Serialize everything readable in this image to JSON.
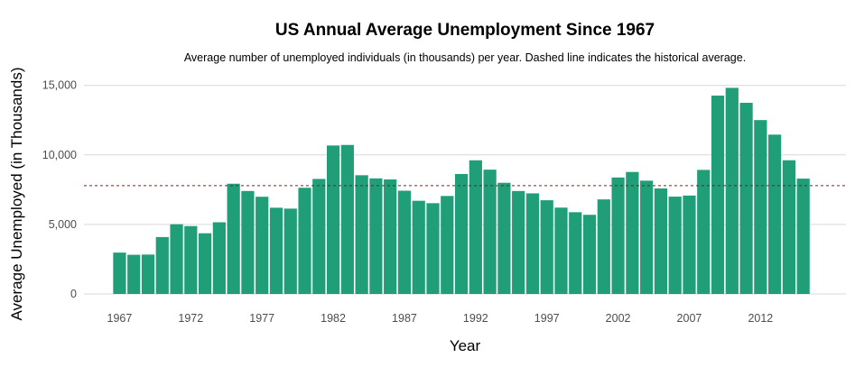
{
  "chart_data": {
    "type": "bar",
    "title": "US Annual Average Unemployment Since 1967",
    "subtitle": "Average number of unemployed individuals (in thousands) per year. Dashed line indicates the historical average.",
    "xlabel": "Year",
    "ylabel": "Average Unemployed (in Thousands)",
    "ylim": [
      0,
      15500
    ],
    "xlim": [
      1964.5,
      2018
    ],
    "y_ticks": [
      0,
      5000,
      10000,
      15000
    ],
    "y_tick_labels": [
      "0",
      "5,000",
      "10,000",
      "15,000"
    ],
    "x_ticks": [
      1967,
      1972,
      1977,
      1982,
      1987,
      1992,
      1997,
      2002,
      2007,
      2012
    ],
    "x_tick_labels": [
      "1967",
      "1972",
      "1977",
      "1982",
      "1987",
      "1992",
      "1997",
      "2002",
      "2007",
      "2012"
    ],
    "years": [
      1967,
      1968,
      1969,
      1970,
      1971,
      1972,
      1973,
      1974,
      1975,
      1976,
      1977,
      1978,
      1979,
      1980,
      1981,
      1982,
      1983,
      1984,
      1985,
      1986,
      1987,
      1988,
      1989,
      1990,
      1991,
      1992,
      1993,
      1994,
      1995,
      1996,
      1997,
      1998,
      1999,
      2000,
      2001,
      2002,
      2003,
      2004,
      2005,
      2006,
      2007,
      2008,
      2009,
      2010,
      2011,
      2012,
      2013,
      2014,
      2015
    ],
    "values": [
      2975,
      2817,
      2832,
      4093,
      5016,
      4882,
      4365,
      5156,
      7929,
      7406,
      6991,
      6202,
      6137,
      7637,
      8273,
      10678,
      10717,
      8539,
      8312,
      8237,
      7425,
      6701,
      6528,
      7047,
      8628,
      9613,
      8940,
      7996,
      7404,
      7236,
      6739,
      6210,
      5880,
      5692,
      6801,
      8378,
      8774,
      8149,
      7591,
      7001,
      7078,
      8924,
      14265,
      14825,
      13747,
      12506,
      11460,
      9617,
      8296
    ],
    "average_line": 7790,
    "grid": true,
    "bar_color": "#1f9e77",
    "average_line_color": "#8b1a1a"
  }
}
